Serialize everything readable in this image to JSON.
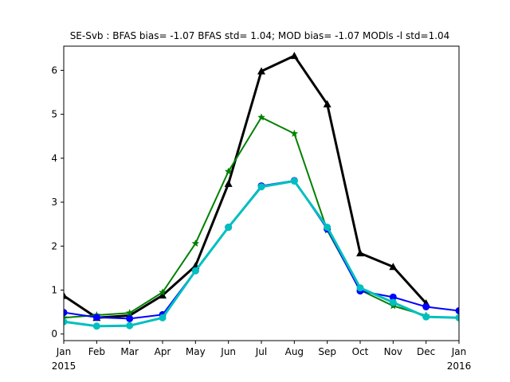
{
  "chart_data": {
    "type": "line",
    "title": "SE-Svb   : BFAS bias= -1.07 BFAS std= 1.04; MOD bias= -1.07 MODls -l std=1.04",
    "xlabel": "",
    "ylabel": "",
    "x_ticks": [
      {
        "label": "Jan",
        "sub": "2015"
      },
      {
        "label": "Feb",
        "sub": ""
      },
      {
        "label": "Mar",
        "sub": ""
      },
      {
        "label": "Apr",
        "sub": ""
      },
      {
        "label": "May",
        "sub": ""
      },
      {
        "label": "Jun",
        "sub": ""
      },
      {
        "label": "Jul",
        "sub": ""
      },
      {
        "label": "Aug",
        "sub": ""
      },
      {
        "label": "Sep",
        "sub": ""
      },
      {
        "label": "Oct",
        "sub": ""
      },
      {
        "label": "Nov",
        "sub": ""
      },
      {
        "label": "Dec",
        "sub": ""
      },
      {
        "label": "Jan",
        "sub": "2016"
      }
    ],
    "y_ticks": [
      "0",
      "1",
      "2",
      "3",
      "4",
      "5",
      "6"
    ],
    "y_tick_values": [
      0,
      1,
      2,
      3,
      4,
      5,
      6
    ],
    "xlim": [
      0,
      12
    ],
    "ylim": [
      -0.15,
      6.55
    ],
    "grid": false,
    "series": [
      {
        "color": "#000000",
        "marker": "triangle",
        "width": 3,
        "x": [
          0,
          1,
          2,
          3,
          4,
          5,
          6,
          7,
          8,
          9,
          10,
          11,
          12
        ],
        "values": [
          0.87,
          0.37,
          0.42,
          0.88,
          1.55,
          3.42,
          5.98,
          6.33,
          5.23,
          1.84,
          1.53,
          0.7,
          null
        ]
      },
      {
        "color": "#008000",
        "marker": "star",
        "width": 2,
        "x": [
          0,
          1,
          2,
          3,
          4,
          5,
          6,
          7,
          8,
          9,
          10,
          11,
          12
        ],
        "values": [
          0.37,
          0.43,
          0.48,
          0.95,
          2.06,
          3.7,
          4.93,
          4.56,
          2.36,
          1.0,
          0.64,
          0.42,
          null
        ]
      },
      {
        "color": "#0000ff",
        "marker": "circle",
        "width": 2,
        "x": [
          0,
          1,
          2,
          3,
          4,
          5,
          6,
          7,
          8,
          9,
          10,
          11,
          12
        ],
        "values": [
          0.49,
          0.38,
          0.35,
          0.44,
          1.44,
          2.43,
          3.37,
          3.49,
          2.39,
          0.98,
          0.84,
          0.62,
          0.53
        ]
      },
      {
        "color": "#00bfbf",
        "marker": "circle",
        "width": 3,
        "x": [
          0,
          1,
          2,
          3,
          4,
          5,
          6,
          7,
          8,
          9,
          10,
          11,
          12
        ],
        "values": [
          0.28,
          0.18,
          0.19,
          0.37,
          1.44,
          2.43,
          3.35,
          3.48,
          2.43,
          1.05,
          0.72,
          0.39,
          0.37
        ]
      }
    ]
  }
}
